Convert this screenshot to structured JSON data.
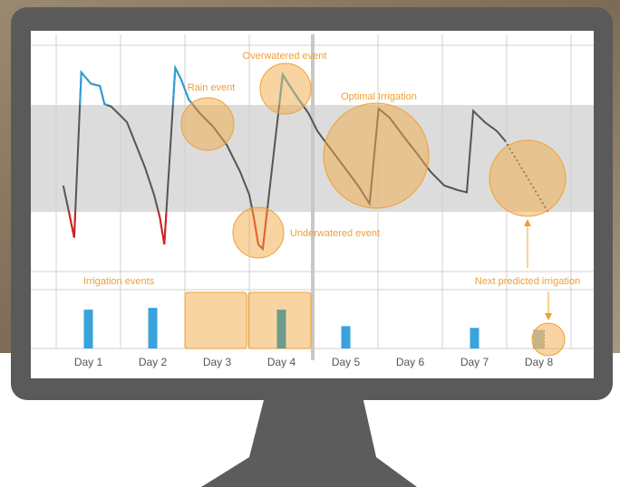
{
  "chart_data": {
    "type": "line",
    "categories": [
      "Day 1",
      "Day 2",
      "Day 3",
      "Day 4",
      "Day 5",
      "Day 6",
      "Day 7",
      "Day 8"
    ],
    "xlim": [
      0,
      8
    ],
    "ylim": [
      0,
      100
    ],
    "band": [
      26.4,
      73.6
    ],
    "series": [
      {
        "color": "#555555",
        "above_color": "#2a9fd6",
        "below_color": "#d42020",
        "x": [
          0.11,
          0.2,
          0.28,
          0.39,
          0.54,
          0.68,
          0.75,
          0.85,
          0.96,
          1.1,
          1.24,
          1.38,
          1.52,
          1.61,
          1.68,
          1.85,
          1.94,
          2.06,
          2.23,
          2.44,
          2.65,
          2.86,
          3.0,
          3.07,
          3.14,
          3.21,
          3.52,
          3.63,
          3.77,
          3.92,
          4.06,
          4.27,
          4.48,
          4.69,
          4.87,
          5.01,
          5.18,
          5.39,
          5.61,
          5.82,
          6.03,
          6.24,
          6.38,
          6.48,
          6.66,
          6.85,
          6.97
        ],
        "values": [
          38,
          26,
          15,
          88,
          83,
          82,
          74,
          73,
          70,
          66,
          56,
          46,
          34,
          24,
          12,
          90,
          85,
          76,
          70,
          64,
          56,
          44,
          34,
          24,
          12,
          10,
          87,
          82,
          76,
          70,
          62,
          54,
          46,
          38,
          30,
          72,
          68,
          60,
          52,
          44,
          38,
          36,
          35,
          71,
          66,
          62,
          58
        ]
      },
      {
        "color": "#555555",
        "dashed": true,
        "x": [
          6.97,
          7.65
        ],
        "values": [
          58,
          26
        ]
      }
    ],
    "irrigation": {
      "ylim": [
        0,
        100
      ],
      "series": [
        {
          "color": "#3aa3dc",
          "values": [
            66,
            69,
            null,
            null,
            38,
            null,
            35,
            null
          ]
        },
        {
          "color": "#6f9b8c",
          "values": [
            null,
            null,
            null,
            66,
            null,
            null,
            null,
            null
          ]
        },
        {
          "color": "#9fc0c8",
          "dashed": true,
          "values": [
            null,
            null,
            null,
            null,
            null,
            null,
            null,
            31
          ]
        }
      ]
    },
    "annotations": [
      "Overwatered event",
      "Rain event",
      "Optimal Irrigation",
      "Underwatered event",
      "Irrigation events",
      "Next predicted irrigation"
    ],
    "annotation_color": "#f0a030"
  }
}
